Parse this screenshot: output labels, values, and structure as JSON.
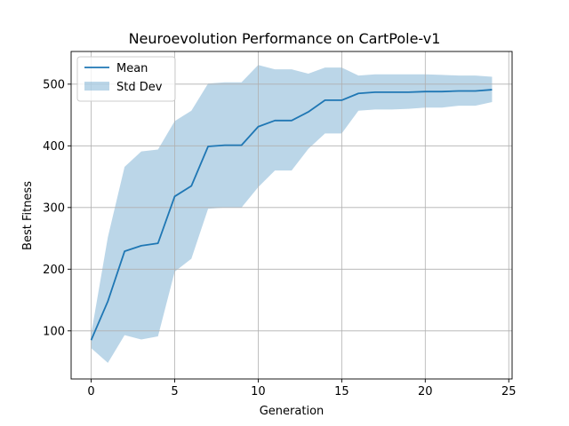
{
  "chart_data": {
    "type": "line",
    "title": "Neuroevolution Performance on CartPole-v1",
    "xlabel": "Generation",
    "ylabel": "Best Fitness",
    "xlim": [
      -1.2,
      25.2
    ],
    "ylim": [
      22,
      553
    ],
    "xticks": [
      0,
      5,
      10,
      15,
      20,
      25
    ],
    "yticks": [
      100,
      200,
      300,
      400,
      500
    ],
    "grid": true,
    "legend_position": "top-left",
    "x": [
      0,
      1,
      2,
      3,
      4,
      5,
      6,
      7,
      8,
      9,
      10,
      11,
      12,
      13,
      14,
      15,
      16,
      17,
      18,
      19,
      20,
      21,
      22,
      23,
      24
    ],
    "series": [
      {
        "name": "Mean",
        "kind": "line",
        "color": "#1f77b4",
        "values": [
          85,
          148,
          229,
          238,
          242,
          318,
          335,
          399,
          401,
          401,
          431,
          441,
          441,
          455,
          474,
          474,
          485,
          487,
          487,
          487,
          488,
          488,
          489,
          489,
          491
        ]
      },
      {
        "name": "Std Dev",
        "kind": "band",
        "color": "#1f77b4",
        "lower": [
          72,
          48,
          93,
          86,
          91,
          196,
          217,
          298,
          300,
          300,
          333,
          360,
          360,
          395,
          420,
          420,
          457,
          459,
          459,
          460,
          462,
          462,
          465,
          465,
          471
        ],
        "upper": [
          95,
          252,
          366,
          391,
          394,
          440,
          457,
          501,
          503,
          503,
          531,
          524,
          524,
          517,
          527,
          527,
          514,
          516,
          516,
          516,
          516,
          515,
          514,
          514,
          512
        ]
      }
    ]
  }
}
